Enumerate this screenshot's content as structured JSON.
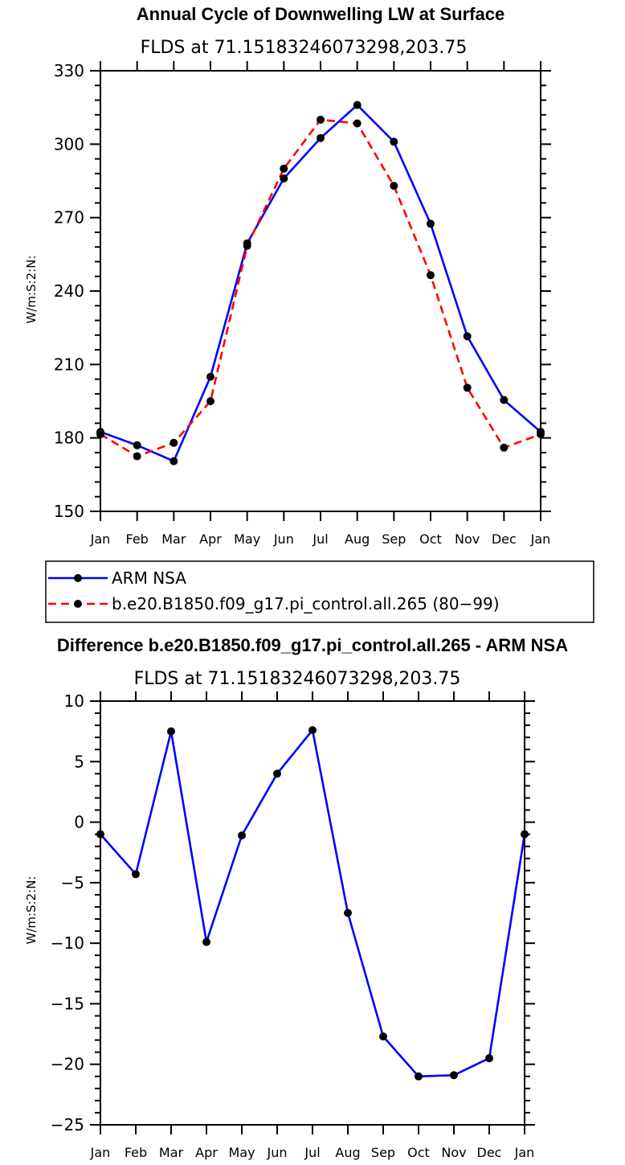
{
  "chart_data": [
    {
      "type": "line",
      "title": "Annual Cycle of Downwelling LW at Surface",
      "subtitle": "FLDS at 71.15183246073298,203.75",
      "ylabel": "W/m:S:2:N:",
      "xlabel": "",
      "categories": [
        "Jan",
        "Feb",
        "Mar",
        "Apr",
        "May",
        "Jun",
        "Jul",
        "Aug",
        "Sep",
        "Oct",
        "Nov",
        "Dec",
        "Jan"
      ],
      "ylim": [
        150,
        330
      ],
      "yticks": [
        150,
        180,
        210,
        240,
        270,
        300,
        330
      ],
      "grid": false,
      "legend_position": "bottom",
      "series": [
        {
          "name": "ARM NSA",
          "color": "#0000ff",
          "dash": "solid",
          "values": [
            182.5,
            177.0,
            170.5,
            205.0,
            259.5,
            286.0,
            302.5,
            316.0,
            301.0,
            267.5,
            221.5,
            195.5,
            182.5
          ]
        },
        {
          "name": "b.e20.B1850.f09_g17.pi_control.all.265 (80−99)",
          "color": "#ff0000",
          "dash": "dashed",
          "values": [
            181.5,
            172.5,
            178.0,
            195.0,
            258.5,
            290.0,
            310.0,
            308.5,
            283.0,
            246.5,
            200.5,
            176.0,
            181.5
          ]
        }
      ]
    },
    {
      "type": "line",
      "title": "Difference b.e20.B1850.f09_g17.pi_control.all.265 - ARM NSA",
      "subtitle": "FLDS at 71.15183246073298,203.75",
      "ylabel": "W/m:S:2:N:",
      "xlabel": "",
      "categories": [
        "Jan",
        "Feb",
        "Mar",
        "Apr",
        "May",
        "Jun",
        "Jul",
        "Aug",
        "Sep",
        "Oct",
        "Nov",
        "Dec",
        "Jan"
      ],
      "ylim": [
        -25,
        10
      ],
      "yticks": [
        -25,
        -20,
        -15,
        -10,
        -5,
        0,
        5,
        10
      ],
      "grid": false,
      "series": [
        {
          "color": "#0000ff",
          "dash": "solid",
          "values": [
            -1.0,
            -4.3,
            7.5,
            -9.9,
            -1.1,
            4.0,
            7.6,
            -7.5,
            -17.7,
            -21.0,
            -20.9,
            -19.5,
            -1.0
          ]
        }
      ]
    }
  ]
}
